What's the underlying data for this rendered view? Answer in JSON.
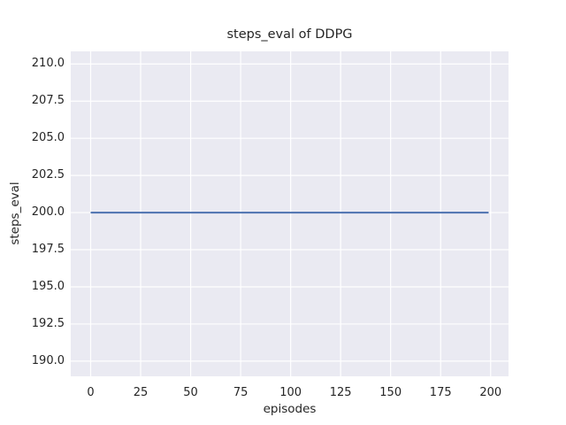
{
  "figure": {
    "background_color": "#ffffff",
    "plot_background_color": "#EAEAF2",
    "grid_color": "#ffffff",
    "text_color": "#262626"
  },
  "chart_data": {
    "type": "line",
    "title": "steps_eval of DDPG",
    "xlabel": "episodes",
    "ylabel": "steps_eval",
    "x_tick_labels": [
      "0",
      "25",
      "50",
      "75",
      "100",
      "125",
      "150",
      "175",
      "200"
    ],
    "y_tick_labels": [
      "190.0",
      "192.5",
      "195.0",
      "197.5",
      "200.0",
      "202.5",
      "205.0",
      "207.5",
      "210.0"
    ],
    "xlim": [
      -9.95,
      208.95
    ],
    "ylim": [
      188.98,
      210.85
    ],
    "grid": true,
    "legend_position": "none",
    "series": [
      {
        "name": "steps_eval",
        "color": "#4C72B0",
        "line_width": 2,
        "x": [
          0,
          199
        ],
        "y": [
          200,
          200
        ]
      }
    ]
  }
}
